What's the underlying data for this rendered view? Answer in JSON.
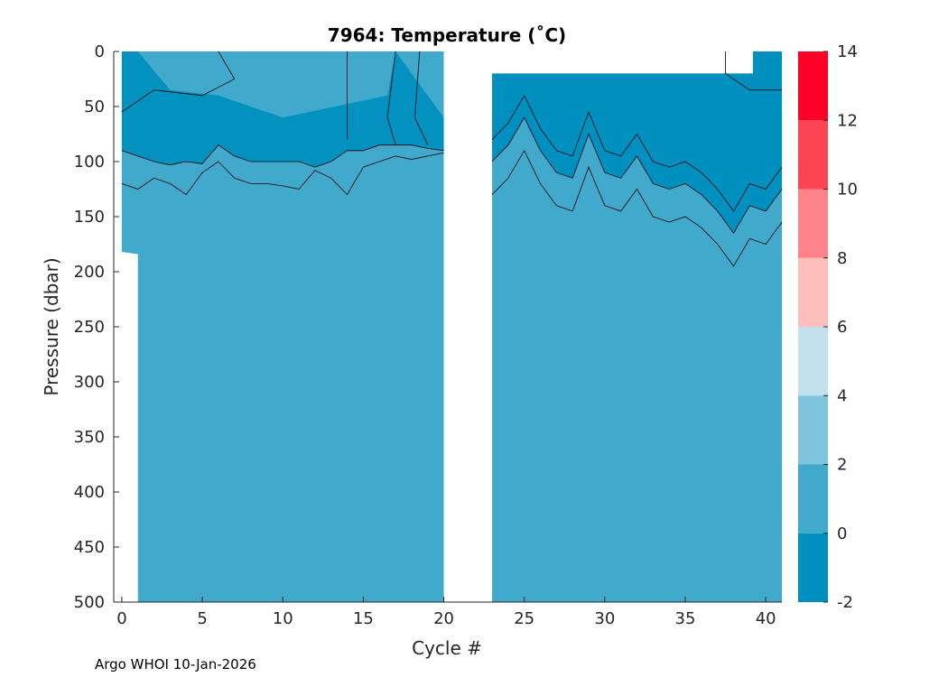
{
  "chart_data": {
    "type": "heatmap",
    "title": "7964:  Temperature (˚C)",
    "xlabel": "Cycle #",
    "ylabel": "Pressure (dbar)",
    "xlim": [
      -0.5,
      41
    ],
    "ylim": [
      0,
      500
    ],
    "y_reversed": true,
    "x_ticks": [
      0,
      5,
      10,
      15,
      20,
      25,
      30,
      35,
      40
    ],
    "y_ticks": [
      0,
      50,
      100,
      150,
      200,
      250,
      300,
      350,
      400,
      450,
      500
    ],
    "colorbar": {
      "range": [
        -2,
        14
      ],
      "ticks": [
        -2,
        0,
        2,
        4,
        6,
        8,
        10,
        12,
        14
      ],
      "levels": [
        {
          "from": -2,
          "to": 0,
          "color": "#0090bf"
        },
        {
          "from": 0,
          "to": 2,
          "color": "#41a9cc"
        },
        {
          "from": 2,
          "to": 4,
          "color": "#80c3dd"
        },
        {
          "from": 4,
          "to": 6,
          "color": "#c2e1ec"
        },
        {
          "from": 6,
          "to": 8,
          "color": "#fdbfbb"
        },
        {
          "from": 8,
          "to": 10,
          "color": "#fb8389"
        },
        {
          "from": 10,
          "to": 12,
          "color": "#fc4453"
        },
        {
          "from": 12,
          "to": 14,
          "color": "#fd0128"
        }
      ]
    },
    "data_gaps": [
      {
        "cycle_from": 20,
        "cycle_to": 23,
        "description": "no data"
      }
    ],
    "cold_layer_top_boundary": {
      "cycles": [
        0,
        1,
        2,
        3,
        4,
        5,
        6,
        7,
        8,
        9,
        10,
        11,
        12,
        13,
        14,
        15,
        16,
        17,
        18,
        19,
        20
      ],
      "pressure": [
        90,
        95,
        100,
        103,
        100,
        102,
        85,
        95,
        100,
        100,
        100,
        100,
        105,
        100,
        90,
        90,
        85,
        85,
        85,
        88,
        90
      ]
    },
    "cold_layer_bottom_boundary": {
      "cycles": [
        0,
        1,
        2,
        3,
        4,
        5,
        6,
        7,
        8,
        9,
        10,
        11,
        12,
        13,
        14,
        15,
        16,
        17,
        18,
        19,
        20
      ],
      "pressure": [
        120,
        125,
        115,
        120,
        130,
        110,
        100,
        115,
        120,
        120,
        122,
        125,
        108,
        115,
        130,
        105,
        100,
        95,
        98,
        95,
        92
      ]
    },
    "cold_layer_second_segment_bottom": {
      "cycles": [
        23,
        24,
        25,
        26,
        27,
        28,
        29,
        30,
        31,
        32,
        33,
        34,
        35,
        36,
        37,
        38,
        39,
        40,
        41
      ],
      "pressure": [
        130,
        115,
        90,
        120,
        140,
        145,
        105,
        140,
        145,
        125,
        150,
        155,
        150,
        160,
        175,
        195,
        170,
        175,
        155
      ]
    },
    "surface_data_start_second_segment": 20,
    "source": "Argo WHOI",
    "date": "10-Jan-2026"
  },
  "footer": "Argo WHOI 10-Jan-2026"
}
